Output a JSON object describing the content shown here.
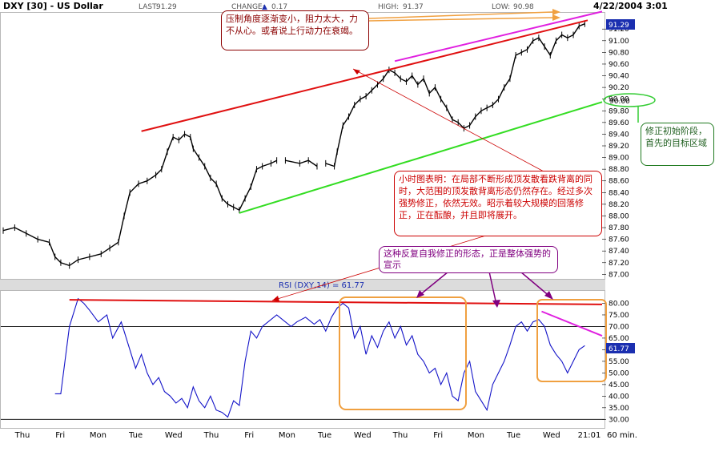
{
  "header": {
    "symbol": "DXY [30] - US Dollar",
    "last_label": "LAST:",
    "last_value": "91.29",
    "change_label": "CHANGE:",
    "change_arrow": "▲",
    "change_value": "0.17",
    "high_label": "HIGH:",
    "high_value": "91.37",
    "low_label": "LOW:",
    "low_value": "90.98",
    "datetime": "4/22/2004 3:01"
  },
  "rsi_label": "RSI (DXY,14) = 61.77",
  "annotations": {
    "top": "压制角度逐渐变小，阻力太大，力不从心。或者说上行动力在衰竭。",
    "right": "修正初始阶段，首先的目标区域",
    "hourly": "小时图表明：在局部不断形成顶发散看跌背离的同时，大范围的顶发散背离形态仍然存在。经过多次强势修正，依然无效。昭示着较大规模的回落修正，正在酝酿，并且即将展开。",
    "purple": "这种反复自我修正的形态，正是整体强势的宣示"
  },
  "colors": {
    "price": "#000000",
    "rsi_line": "#1414c8",
    "upper_trendline": "#e01010",
    "upper_channel": "#e020e0",
    "lower_trendline": "#33dd22",
    "target_ellipse": "#33cc33",
    "box_orange": "#f0a040",
    "arrow_orange": "#f0a040",
    "arrow_purple": "#800080",
    "arrow_red": "#cc0000",
    "last_badge": "#1b2fb0"
  },
  "chart_data": [
    {
      "type": "candlestick",
      "title": "DXY [30] - US Dollar",
      "timeframe": "60 min.",
      "x_ticks": [
        "Thu",
        "Fri",
        "Mon",
        "Tue",
        "Wed",
        "Thu",
        "Fri",
        "Mon",
        "Tue",
        "Wed",
        "Thu",
        "Fri",
        "Mon",
        "Tue",
        "Wed",
        "21:01"
      ],
      "x_unit_label": "60 min.",
      "y_ticks": [
        "87.00",
        "87.20",
        "87.40",
        "87.60",
        "87.80",
        "88.00",
        "88.20",
        "88.40",
        "88.60",
        "88.80",
        "89.00",
        "89.20",
        "89.40",
        "89.60",
        "89.80",
        "90.00",
        "90.20",
        "90.40",
        "90.60",
        "90.80",
        "91.00",
        "91.20"
      ],
      "ylim": [
        86.95,
        91.45
      ],
      "last": 91.29,
      "last_label": "91.29",
      "target_label": "90.00",
      "series": [
        {
          "points": [
            [
              0,
              87.75
            ],
            [
              4,
              87.8
            ],
            [
              8,
              87.7
            ],
            [
              12,
              87.6
            ],
            [
              16,
              87.55
            ],
            [
              18,
              87.3
            ],
            [
              20,
              87.2
            ],
            [
              23,
              87.15
            ],
            [
              26,
              87.25
            ],
            [
              30,
              87.3
            ],
            [
              34,
              87.35
            ],
            [
              37,
              87.45
            ],
            [
              40,
              87.55
            ],
            [
              42,
              88.0
            ],
            [
              44,
              88.4
            ],
            [
              47,
              88.55
            ],
            [
              50,
              88.6
            ],
            [
              53,
              88.7
            ],
            [
              55,
              88.8
            ],
            [
              57,
              89.1
            ],
            [
              59,
              89.35
            ],
            [
              61,
              89.3
            ],
            [
              63,
              89.4
            ],
            [
              65,
              89.35
            ],
            [
              66,
              89.15
            ],
            [
              68,
              89.0
            ],
            [
              70,
              88.85
            ],
            [
              72,
              88.65
            ],
            [
              74,
              88.55
            ],
            [
              76,
              88.3
            ],
            [
              78,
              88.2
            ],
            [
              80,
              88.15
            ],
            [
              82,
              88.1
            ],
            [
              84,
              88.3
            ],
            [
              86,
              88.5
            ],
            [
              88,
              88.8
            ],
            [
              90,
              88.85
            ],
            [
              93,
              88.9
            ],
            [
              95,
              88.95
            ],
            [
              98,
              88.95
            ],
            [
              103,
              88.9
            ],
            [
              106,
              88.95
            ],
            [
              109,
              88.85
            ],
            [
              112,
              88.9
            ],
            [
              115,
              88.85
            ],
            [
              116,
              89.1
            ],
            [
              118,
              89.55
            ],
            [
              120,
              89.7
            ],
            [
              122,
              89.9
            ],
            [
              124,
              90.0
            ],
            [
              126,
              90.05
            ],
            [
              128,
              90.15
            ],
            [
              130,
              90.25
            ],
            [
              132,
              90.35
            ],
            [
              134,
              90.5
            ],
            [
              136,
              90.45
            ],
            [
              138,
              90.35
            ],
            [
              140,
              90.3
            ],
            [
              142,
              90.4
            ],
            [
              144,
              90.25
            ],
            [
              146,
              90.35
            ],
            [
              148,
              90.1
            ],
            [
              150,
              90.2
            ],
            [
              152,
              90.0
            ],
            [
              154,
              89.85
            ],
            [
              156,
              89.65
            ],
            [
              158,
              89.6
            ],
            [
              160,
              89.5
            ],
            [
              162,
              89.55
            ],
            [
              164,
              89.7
            ],
            [
              166,
              89.8
            ],
            [
              168,
              89.85
            ],
            [
              170,
              89.9
            ],
            [
              172,
              90.0
            ],
            [
              174,
              90.2
            ],
            [
              176,
              90.35
            ],
            [
              178,
              90.75
            ],
            [
              180,
              90.8
            ],
            [
              182,
              90.85
            ],
            [
              184,
              91.0
            ],
            [
              186,
              91.05
            ],
            [
              188,
              90.9
            ],
            [
              190,
              90.75
            ],
            [
              192,
              91.0
            ],
            [
              194,
              91.1
            ],
            [
              196,
              91.05
            ],
            [
              198,
              91.1
            ],
            [
              200,
              91.25
            ],
            [
              202,
              91.29
            ]
          ],
          "gaps_after_index": [
            95,
            111
          ]
        }
      ],
      "trendlines": [
        {
          "name": "upper_resistance",
          "from": [
            48,
            89.45
          ],
          "to": [
            203,
            91.35
          ]
        },
        {
          "name": "upper_channel",
          "from": [
            136,
            90.65
          ],
          "to": [
            208,
            91.5
          ]
        },
        {
          "name": "lower_support",
          "from": [
            82,
            88.05
          ],
          "to": [
            208,
            89.95
          ]
        }
      ]
    },
    {
      "type": "line",
      "title": "RSI (DXY,14) = 61.77",
      "y_ticks": [
        "30.00",
        "35.00",
        "40.00",
        "45.00",
        "50.00",
        "55.00",
        "60.00",
        "65.00",
        "70.00",
        "75.00",
        "80.00"
      ],
      "ylim": [
        27,
        85
      ],
      "hlines": [
        30,
        70
      ],
      "last": 61.77,
      "last_label": "61.77",
      "series": [
        {
          "values": [
            [
              18,
              41
            ],
            [
              20,
              41
            ],
            [
              23,
              70
            ],
            [
              26,
              82
            ],
            [
              28,
              80
            ],
            [
              30,
              77
            ],
            [
              33,
              72
            ],
            [
              36,
              75
            ],
            [
              38,
              65
            ],
            [
              41,
              72
            ],
            [
              44,
              60
            ],
            [
              46,
              52
            ],
            [
              48,
              58
            ],
            [
              50,
              50
            ],
            [
              52,
              45
            ],
            [
              54,
              48
            ],
            [
              56,
              42
            ],
            [
              58,
              40
            ],
            [
              60,
              37
            ],
            [
              62,
              39
            ],
            [
              64,
              35
            ],
            [
              66,
              44
            ],
            [
              68,
              38
            ],
            [
              70,
              35
            ],
            [
              72,
              40
            ],
            [
              74,
              34
            ],
            [
              76,
              33
            ],
            [
              78,
              31
            ],
            [
              80,
              38
            ],
            [
              82,
              36
            ],
            [
              84,
              55
            ],
            [
              86,
              68
            ],
            [
              88,
              65
            ],
            [
              90,
              70
            ],
            [
              92,
              72
            ],
            [
              95,
              75
            ],
            [
              98,
              72
            ],
            [
              100,
              70
            ],
            [
              102,
              72
            ],
            [
              105,
              74
            ],
            [
              108,
              71
            ],
            [
              110,
              73
            ],
            [
              112,
              68
            ],
            [
              114,
              74
            ],
            [
              116,
              78
            ],
            [
              118,
              80
            ],
            [
              120,
              78
            ],
            [
              122,
              65
            ],
            [
              124,
              70
            ],
            [
              126,
              58
            ],
            [
              128,
              66
            ],
            [
              130,
              61
            ],
            [
              132,
              68
            ],
            [
              134,
              72
            ],
            [
              136,
              65
            ],
            [
              138,
              70
            ],
            [
              140,
              62
            ],
            [
              142,
              66
            ],
            [
              144,
              58
            ],
            [
              146,
              55
            ],
            [
              148,
              50
            ],
            [
              150,
              52
            ],
            [
              152,
              45
            ],
            [
              154,
              50
            ],
            [
              156,
              40
            ],
            [
              158,
              38
            ],
            [
              160,
              50
            ],
            [
              162,
              55
            ],
            [
              164,
              42
            ],
            [
              166,
              38
            ],
            [
              168,
              34
            ],
            [
              170,
              45
            ],
            [
              172,
              50
            ],
            [
              174,
              55
            ],
            [
              176,
              62
            ],
            [
              178,
              70
            ],
            [
              180,
              72
            ],
            [
              182,
              68
            ],
            [
              184,
              72
            ],
            [
              186,
              73
            ],
            [
              188,
              70
            ],
            [
              190,
              62
            ],
            [
              192,
              58
            ],
            [
              194,
              55
            ],
            [
              196,
              50
            ],
            [
              198,
              55
            ],
            [
              200,
              60
            ],
            [
              202,
              61.77
            ]
          ]
        }
      ],
      "trendlines": [
        {
          "name": "rsi_upper_red",
          "from": [
            23,
            81.5
          ],
          "to": [
            208,
            79.5
          ]
        },
        {
          "name": "rsi_short_magenta",
          "from": [
            187,
            76.5
          ],
          "to": [
            208,
            66
          ]
        }
      ]
    }
  ]
}
